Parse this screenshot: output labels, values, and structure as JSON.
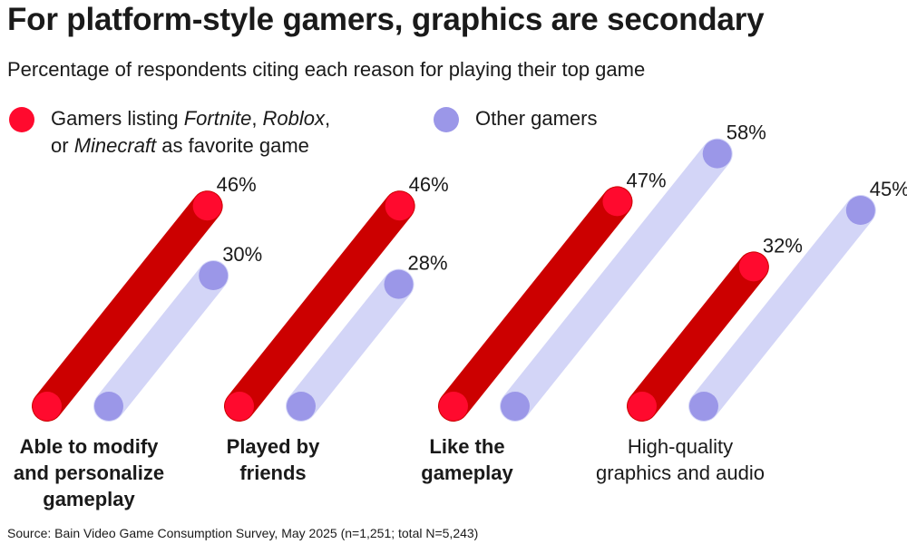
{
  "title": "For platform-style gamers, graphics are secondary",
  "subtitle": "Percentage of respondents citing each reason for playing their top game",
  "legend": {
    "series_a_parts": [
      "Gamers listing ",
      "Fortnite",
      ", ",
      "Roblox",
      ",",
      "or ",
      "Minecraft",
      " as favorite game"
    ],
    "series_b": "Other gamers"
  },
  "colors": {
    "series_a": "#cc0000",
    "series_a_dot": "#ff0a2e",
    "series_b": "#d3d5f7",
    "series_b_dot": "#9b97e8"
  },
  "source": "Source: Bain Video Game Consumption Survey, May 2025 (n=1,251; total N=5,243)",
  "category_label_lines": [
    [
      "Able to modify",
      "and personalize",
      "gameplay"
    ],
    [
      "Played by",
      "friends"
    ],
    [
      "Like the",
      "gameplay"
    ],
    [
      "High-quality",
      "graphics and audio"
    ]
  ],
  "chart_data": {
    "type": "bar",
    "categories": [
      "Able to modify and personalize gameplay",
      "Played by friends",
      "Like the gameplay",
      "High-quality graphics and audio"
    ],
    "series": [
      {
        "name": "Gamers listing Fortnite, Roblox, or Minecraft as favorite game",
        "values": [
          46,
          46,
          47,
          32
        ],
        "labels": [
          "46%",
          "46%",
          "47%",
          "32%"
        ]
      },
      {
        "name": "Other gamers",
        "values": [
          30,
          28,
          58,
          45
        ],
        "labels": [
          "30%",
          "28%",
          "58%",
          "45%"
        ]
      }
    ],
    "unit": "%",
    "grid": false,
    "legend_position": "top-left"
  }
}
